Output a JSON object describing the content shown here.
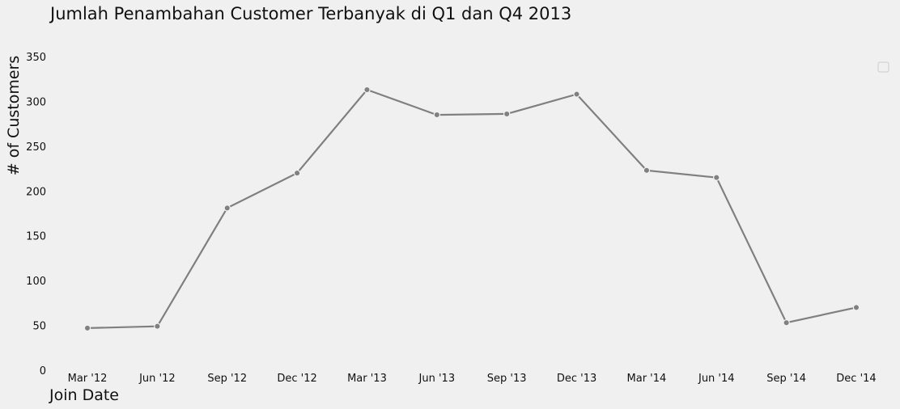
{
  "chart_data": {
    "type": "line",
    "title": "Jumlah Penambahan Customer Terbanyak di Q1 dan Q4 2013",
    "xlabel": "Join Date",
    "ylabel": "# of Customers",
    "categories": [
      "Mar '12",
      "Jun '12",
      "Sep '12",
      "Dec '12",
      "Mar '13",
      "Jun '13",
      "Sep '13",
      "Dec '13",
      "Mar '14",
      "Jun '14",
      "Sep '14",
      "Dec '14"
    ],
    "series": [
      {
        "name": "",
        "values": [
          47,
          49,
          181,
          220,
          313,
          285,
          286,
          308,
          223,
          215,
          53,
          70
        ]
      }
    ],
    "ylim": [
      0,
      350
    ],
    "yticks": [
      0,
      50,
      100,
      150,
      200,
      250,
      300,
      350
    ],
    "grid": false,
    "legend": "top-right",
    "line_color": "#808080",
    "background_color": "#f0f0f0"
  }
}
